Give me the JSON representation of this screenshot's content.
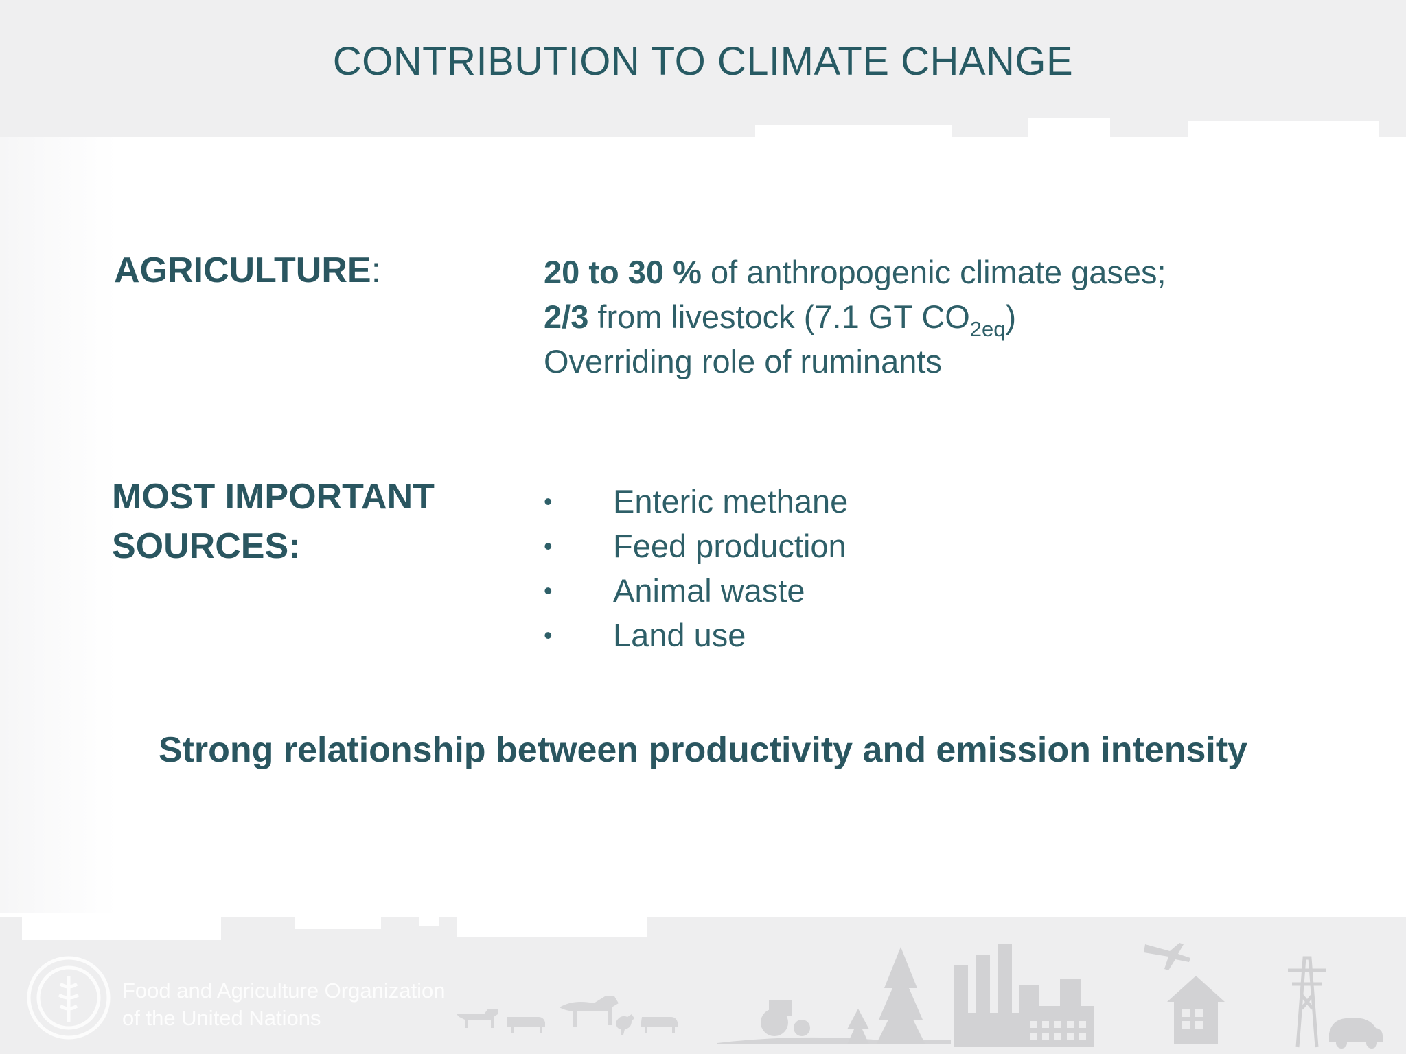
{
  "slide": {
    "title": "CONTRIBUTION TO CLIMATE CHANGE",
    "agriculture": {
      "label": "AGRICULTURE",
      "colon": ":",
      "line1_bold": "20 to 30 %",
      "line1_rest": " of anthropogenic climate gases;",
      "line2_bold": "2/3",
      "line2_rest": " from livestock (7.1 GT CO",
      "line2_sub": "2eq",
      "line2_end": ")",
      "line3": "Overriding role of ruminants"
    },
    "sources": {
      "label_line1": "MOST IMPORTANT",
      "label_line2": "SOURCES:",
      "bullet_glyph": "•",
      "items": [
        "Enteric methane",
        "Feed production",
        "Animal waste",
        "Land use"
      ]
    },
    "conclusion": "Strong relationship between productivity and emission intensity"
  },
  "footer": {
    "org_line1": "Food and Agriculture Organization",
    "org_line2": "of the United Nations",
    "logo_icon": "fao-logo-icon",
    "illustration": "farm-and-industry-silhouette"
  },
  "colors": {
    "text": "#2a5660",
    "band": "#efeff0",
    "silhouette": "#dcdcdd"
  }
}
